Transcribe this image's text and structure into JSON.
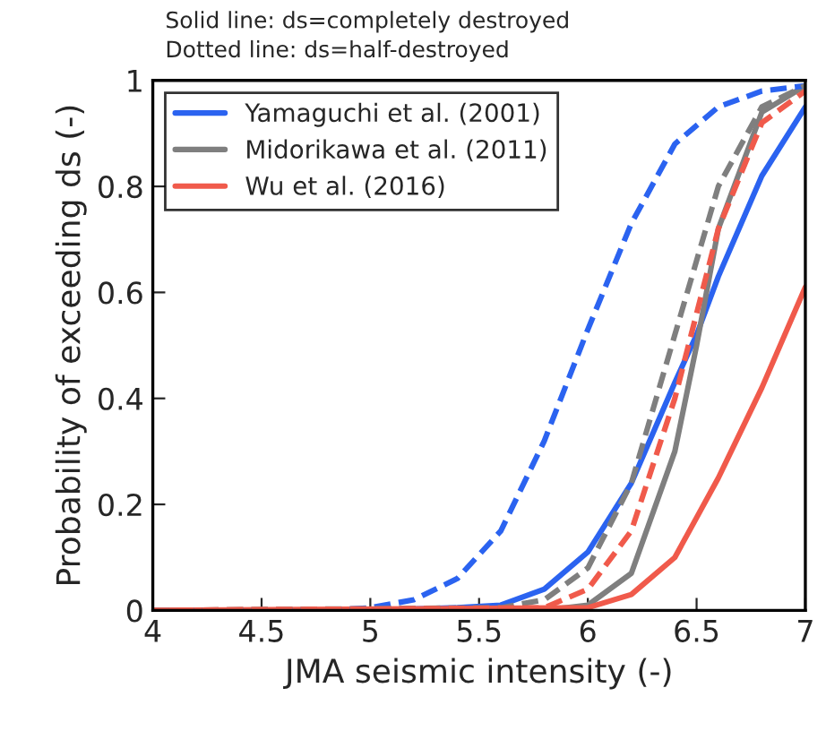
{
  "chart_data": {
    "type": "line",
    "annotations": [
      "Solid line: ds=completely destroyed",
      "Dotted line: ds=half-destroyed"
    ],
    "xlabel": "JMA seismic intensity (-)",
    "ylabel": "Probability of exceeding ds (-)",
    "xlim": [
      4,
      7
    ],
    "ylim": [
      0,
      1
    ],
    "xticks": [
      4,
      4.5,
      5,
      5.5,
      6,
      6.5,
      7
    ],
    "yticks": [
      0,
      0.2,
      0.4,
      0.6,
      0.8,
      1
    ],
    "grid": false,
    "legend": "top left",
    "marker": "none",
    "series": [
      {
        "name": "Yamaguchi et al. (2001)",
        "color": "#2b63f0",
        "line_style": "solid",
        "x": [
          4,
          5,
          5.4,
          5.6,
          5.8,
          6.0,
          6.2,
          6.4,
          6.5,
          6.6,
          6.8,
          7.0
        ],
        "values": [
          0,
          0,
          0.005,
          0.01,
          0.04,
          0.11,
          0.24,
          0.43,
          0.52,
          0.63,
          0.82,
          0.95
        ]
      },
      {
        "name": "Midorikawa et al. (2011)",
        "color": "#7f7f7f",
        "line_style": "solid",
        "x": [
          4,
          5.8,
          6.0,
          6.2,
          6.4,
          6.5,
          6.6,
          6.8,
          7.0
        ],
        "values": [
          0,
          0,
          0.01,
          0.07,
          0.3,
          0.5,
          0.72,
          0.94,
          0.99
        ]
      },
      {
        "name": "Wu et al. (2016)",
        "color": "#f05a4b",
        "line_style": "solid",
        "x": [
          4,
          6.0,
          6.2,
          6.4,
          6.6,
          6.8,
          7.0
        ],
        "values": [
          0,
          0.005,
          0.03,
          0.1,
          0.25,
          0.42,
          0.61
        ]
      },
      {
        "color": "#2b63f0",
        "line_style": "dashed",
        "x": [
          4,
          4.8,
          5.0,
          5.2,
          5.4,
          5.6,
          5.8,
          6.0,
          6.2,
          6.4,
          6.6,
          6.8,
          7.0
        ],
        "values": [
          0,
          0,
          0.005,
          0.02,
          0.06,
          0.15,
          0.32,
          0.53,
          0.73,
          0.88,
          0.95,
          0.98,
          0.99
        ]
      },
      {
        "color": "#7f7f7f",
        "line_style": "dashed",
        "x": [
          4,
          5.6,
          5.8,
          6.0,
          6.2,
          6.4,
          6.6,
          6.8,
          7.0
        ],
        "values": [
          0,
          0.005,
          0.02,
          0.08,
          0.24,
          0.52,
          0.8,
          0.95,
          0.99
        ]
      },
      {
        "color": "#f05a4b",
        "line_style": "dashed",
        "x": [
          4,
          5.8,
          6.0,
          6.2,
          6.4,
          6.6,
          6.8,
          7.0
        ],
        "values": [
          0,
          0.005,
          0.04,
          0.15,
          0.4,
          0.72,
          0.92,
          0.98
        ]
      }
    ]
  }
}
